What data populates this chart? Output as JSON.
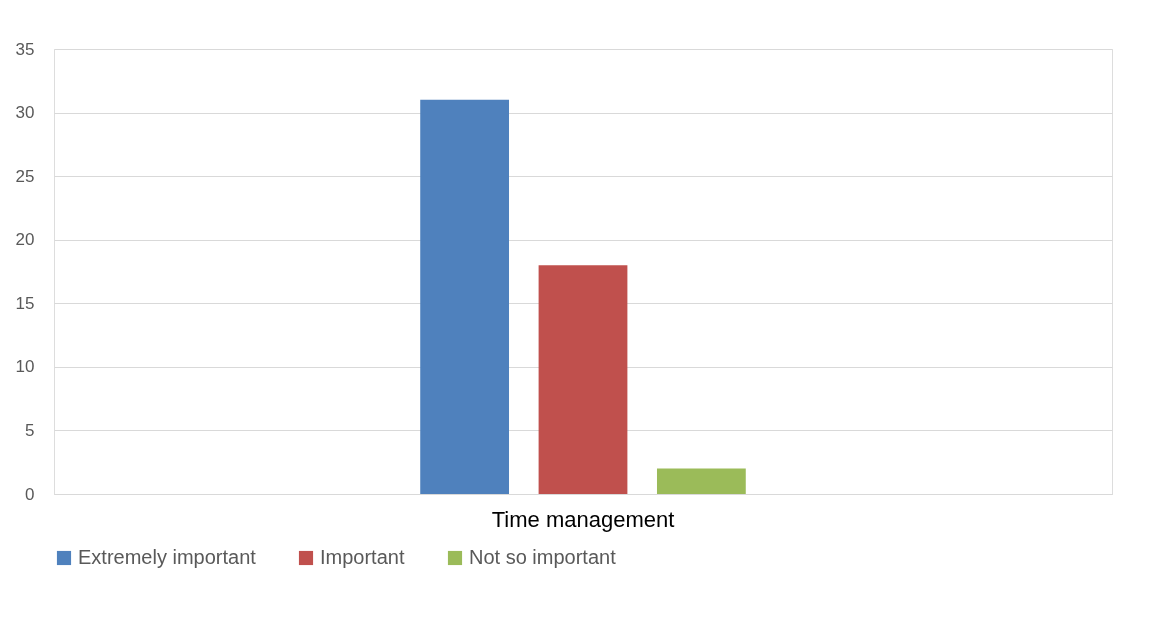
{
  "chart_data": {
    "type": "bar",
    "categories": [
      "Time management"
    ],
    "series": [
      {
        "name": "Extremely important",
        "color": "#4f81bd",
        "values": [
          31
        ]
      },
      {
        "name": "Important",
        "color": "#c0504d",
        "values": [
          18
        ]
      },
      {
        "name": "Not so important",
        "color": "#9bbb59",
        "values": [
          2
        ]
      }
    ],
    "ylim": [
      0,
      35
    ],
    "yticks": [
      0,
      5,
      10,
      15,
      20,
      25,
      30,
      35
    ],
    "grid": "y",
    "legend": "bottom"
  }
}
